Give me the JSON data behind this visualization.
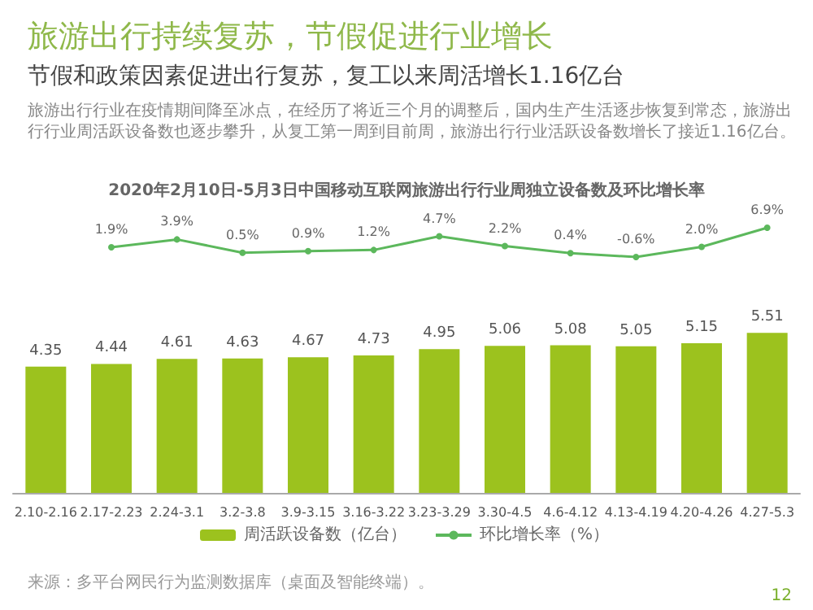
{
  "chart_data": [
    {
      "type": "line",
      "title": "旅游出行持续复苏，节假促进行业增长",
      "subtitle": "节假和政策因素促进出行复苏，复工以来周活增长1.16亿台",
      "annotations": [
        "旅游出行行业在疫情期间降至冰点，在经历了将近三个月的调整后，国内生产生活逐步恢复到常态，旅游出行行业周活跃设备数也逐步攀升，从复工第一周到目前周，旅游出行行业活跃设备数增长了接近1.16亿台。",
        "2020年2月10日-5月3日中国移动互联网旅游出行行业周独立设备数及环比增长率"
      ],
      "categories": [
        null,
        null,
        null,
        null,
        null,
        null,
        null,
        null,
        null,
        null,
        null,
        null
      ],
      "series": [
        {
          "name": "环比增长率（%）",
          "color": "#5cb85c",
          "values": [
            null,
            1.9,
            3.9,
            0.5,
            0.9,
            1.2,
            4.7,
            2.2,
            0.4,
            -0.6,
            2.0,
            6.9
          ],
          "value_labels": [
            null,
            "1.9%",
            "3.9%",
            "0.5%",
            "0.9%",
            "1.2%",
            "4.7%",
            "2.2%",
            "0.4%",
            "-0.6%",
            "2.0%",
            "6.9%"
          ]
        }
      ],
      "legend": "bottom",
      "marker": "circle",
      "tick_labels": false
    },
    {
      "type": "bar",
      "annotations": [
        "来源：多平台网民行为监测数据库（桌面及智能终端）。",
        "12"
      ],
      "categories": [
        "2.10-2.16",
        "2.17-2.23",
        "2.24-3.1",
        "3.2-3.8",
        "3.9-3.15",
        "3.16-3.22",
        "3.23-3.29",
        "3.30-4.5",
        "4.6-4.12",
        "4.13-4.19",
        "4.20-4.26",
        "4.27-5.3"
      ],
      "series": [
        {
          "name": "周活跃设备数（亿台）",
          "color": "#9cc21e",
          "values": [
            4.35,
            4.44,
            4.61,
            4.63,
            4.67,
            4.73,
            4.95,
            5.06,
            5.08,
            5.05,
            5.15,
            5.51
          ]
        }
      ],
      "data_labels": true,
      "legend": "bottom",
      "tick_labels": "x"
    }
  ]
}
